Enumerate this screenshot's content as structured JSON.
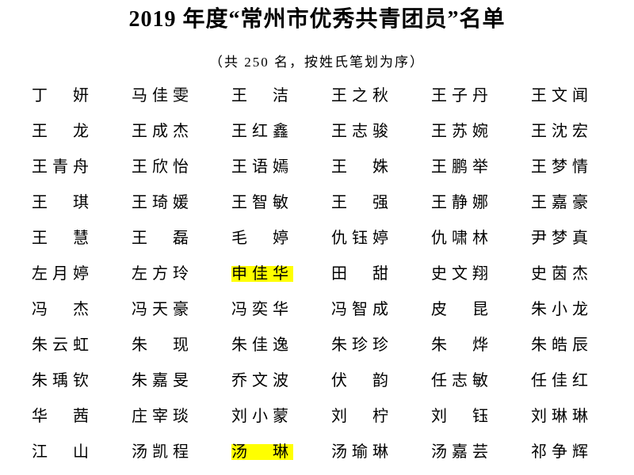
{
  "document": {
    "title": "2019 年度“常州市优秀共青团员”名单",
    "subtitle": "（共 250 名，按姓氏笔划为序）",
    "total_count": "250",
    "sort_note": "按姓氏笔划为序",
    "background_color": "#ffffff",
    "text_color": "#000000",
    "highlight_color": "#ffff00"
  },
  "roster": {
    "columns": 6,
    "highlighted_names": [
      "申佳华",
      "汤　琳"
    ],
    "rows": [
      [
        {
          "name": "丁　妍"
        },
        {
          "name": "马佳雯"
        },
        {
          "name": "王　洁"
        },
        {
          "name": "王之秋"
        },
        {
          "name": "王子丹"
        },
        {
          "name": "王文闻"
        }
      ],
      [
        {
          "name": "王　龙"
        },
        {
          "name": "王成杰"
        },
        {
          "name": "王红鑫"
        },
        {
          "name": "王志骏"
        },
        {
          "name": "王苏婉"
        },
        {
          "name": "王沈宏"
        }
      ],
      [
        {
          "name": "王青舟"
        },
        {
          "name": "王欣怡"
        },
        {
          "name": "王语嫣"
        },
        {
          "name": "王　姝"
        },
        {
          "name": "王鹏举"
        },
        {
          "name": "王梦情"
        }
      ],
      [
        {
          "name": "王　琪"
        },
        {
          "name": "王琦媛"
        },
        {
          "name": "王智敏"
        },
        {
          "name": "王　强"
        },
        {
          "name": "王静娜"
        },
        {
          "name": "王嘉豪"
        }
      ],
      [
        {
          "name": "王　慧"
        },
        {
          "name": "王　磊"
        },
        {
          "name": "毛　婷"
        },
        {
          "name": "仇钰婷"
        },
        {
          "name": "仇啸林"
        },
        {
          "name": "尹梦真"
        }
      ],
      [
        {
          "name": "左月婷"
        },
        {
          "name": "左方玲"
        },
        {
          "name": "申佳华",
          "highlight": true
        },
        {
          "name": "田　甜"
        },
        {
          "name": "史文翔"
        },
        {
          "name": "史茵杰"
        }
      ],
      [
        {
          "name": "冯　杰"
        },
        {
          "name": "冯天豪"
        },
        {
          "name": "冯奕华"
        },
        {
          "name": "冯智成"
        },
        {
          "name": "皮　昆"
        },
        {
          "name": "朱小龙"
        }
      ],
      [
        {
          "name": "朱云虹"
        },
        {
          "name": "朱　现"
        },
        {
          "name": "朱佳逸"
        },
        {
          "name": "朱珍珍"
        },
        {
          "name": "朱　烨"
        },
        {
          "name": "朱皓辰"
        }
      ],
      [
        {
          "name": "朱瑀钦"
        },
        {
          "name": "朱嘉旻"
        },
        {
          "name": "乔文波"
        },
        {
          "name": "伏　韵"
        },
        {
          "name": "任志敏"
        },
        {
          "name": "任佳红"
        }
      ],
      [
        {
          "name": "华　茜"
        },
        {
          "name": "庄宰琰"
        },
        {
          "name": "刘小蒙"
        },
        {
          "name": "刘　柠"
        },
        {
          "name": "刘　钰"
        },
        {
          "name": "刘琳琳"
        }
      ],
      [
        {
          "name": "江　山"
        },
        {
          "name": "汤凯程"
        },
        {
          "name": "汤　琳",
          "highlight": true
        },
        {
          "name": "汤瑜琳"
        },
        {
          "name": "汤嘉芸"
        },
        {
          "name": "祁争辉"
        }
      ]
    ]
  }
}
